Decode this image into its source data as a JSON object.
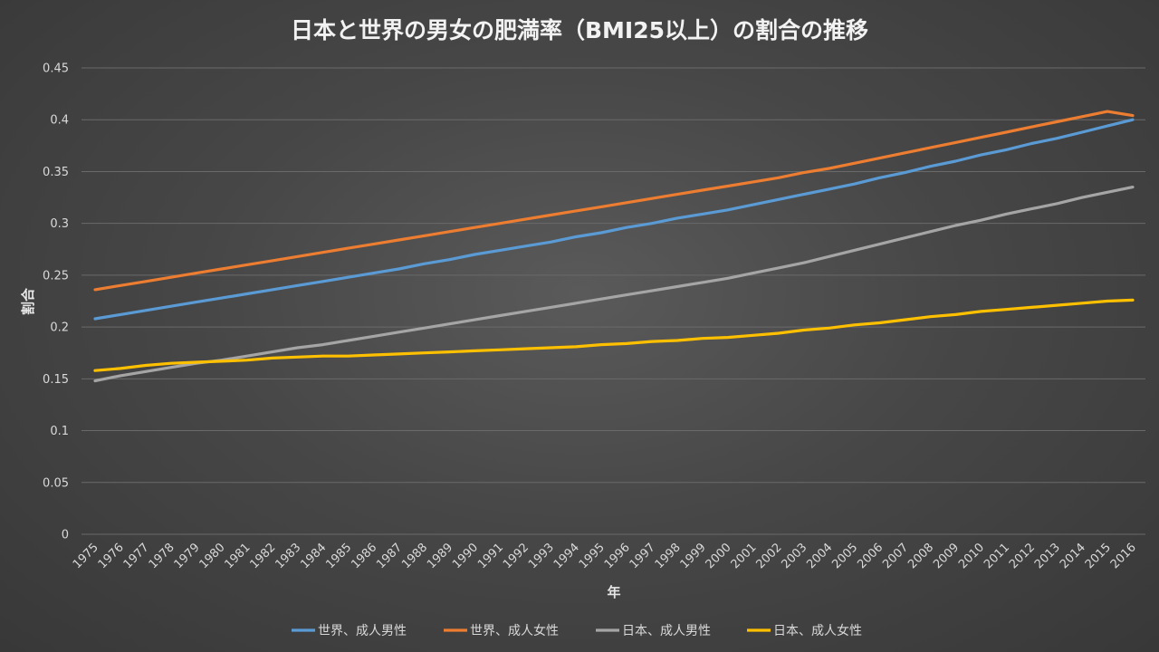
{
  "chart_data": {
    "type": "line",
    "title": "日本と世界の男女の肥満率（BMI25以上）の割合の推移",
    "xlabel": "年",
    "ylabel": "割合",
    "ylim": [
      0,
      0.45
    ],
    "yticks": [
      "0",
      "0.05",
      "0.1",
      "0.15",
      "0.2",
      "0.25",
      "0.3",
      "0.35",
      "0.4",
      "0.45"
    ],
    "grid": true,
    "legend_position": "bottom",
    "categories": [
      "1975",
      "1976",
      "1977",
      "1978",
      "1979",
      "1980",
      "1981",
      "1982",
      "1983",
      "1984",
      "1985",
      "1986",
      "1987",
      "1988",
      "1989",
      "1990",
      "1991",
      "1992",
      "1993",
      "1994",
      "1995",
      "1996",
      "1997",
      "1998",
      "1999",
      "2000",
      "2001",
      "2002",
      "2003",
      "2004",
      "2005",
      "2006",
      "2007",
      "2008",
      "2009",
      "2010",
      "2011",
      "2012",
      "2013",
      "2014",
      "2015",
      "2016"
    ],
    "series": [
      {
        "name": "世界、成人男性",
        "color": "#5b9bd5",
        "values": [
          0.208,
          0.212,
          0.216,
          0.22,
          0.224,
          0.228,
          0.232,
          0.236,
          0.24,
          0.244,
          0.248,
          0.252,
          0.256,
          0.261,
          0.265,
          0.27,
          0.274,
          0.278,
          0.282,
          0.287,
          0.291,
          0.296,
          0.3,
          0.305,
          0.309,
          0.313,
          0.318,
          0.323,
          0.328,
          0.333,
          0.338,
          0.344,
          0.349,
          0.355,
          0.36,
          0.366,
          0.371,
          0.377,
          0.382,
          0.388,
          0.394,
          0.4
        ]
      },
      {
        "name": "世界、成人女性",
        "color": "#ed7d31",
        "values": [
          0.236,
          0.24,
          0.244,
          0.248,
          0.252,
          0.256,
          0.26,
          0.264,
          0.268,
          0.272,
          0.276,
          0.28,
          0.284,
          0.288,
          0.292,
          0.296,
          0.3,
          0.304,
          0.308,
          0.312,
          0.316,
          0.32,
          0.324,
          0.328,
          0.332,
          0.336,
          0.34,
          0.344,
          0.349,
          0.353,
          0.358,
          0.363,
          0.368,
          0.373,
          0.378,
          0.383,
          0.388,
          0.393,
          0.398,
          0.403,
          0.408,
          0.404
        ]
      },
      {
        "name": "日本、成人男性",
        "color": "#a5a5a5",
        "values": [
          0.148,
          0.153,
          0.157,
          0.161,
          0.165,
          0.168,
          0.172,
          0.176,
          0.18,
          0.183,
          0.187,
          0.191,
          0.195,
          0.199,
          0.203,
          0.207,
          0.211,
          0.215,
          0.219,
          0.223,
          0.227,
          0.231,
          0.235,
          0.239,
          0.243,
          0.247,
          0.252,
          0.257,
          0.262,
          0.268,
          0.274,
          0.28,
          0.286,
          0.292,
          0.298,
          0.303,
          0.309,
          0.314,
          0.319,
          0.325,
          0.33,
          0.335
        ]
      },
      {
        "name": "日本、成人女性",
        "color": "#ffc000",
        "values": [
          0.158,
          0.16,
          0.163,
          0.165,
          0.166,
          0.167,
          0.168,
          0.17,
          0.171,
          0.172,
          0.172,
          0.173,
          0.174,
          0.175,
          0.176,
          0.177,
          0.178,
          0.179,
          0.18,
          0.181,
          0.183,
          0.184,
          0.186,
          0.187,
          0.189,
          0.19,
          0.192,
          0.194,
          0.197,
          0.199,
          0.202,
          0.204,
          0.207,
          0.21,
          0.212,
          0.215,
          0.217,
          0.219,
          0.221,
          0.223,
          0.225,
          0.226
        ]
      }
    ]
  }
}
